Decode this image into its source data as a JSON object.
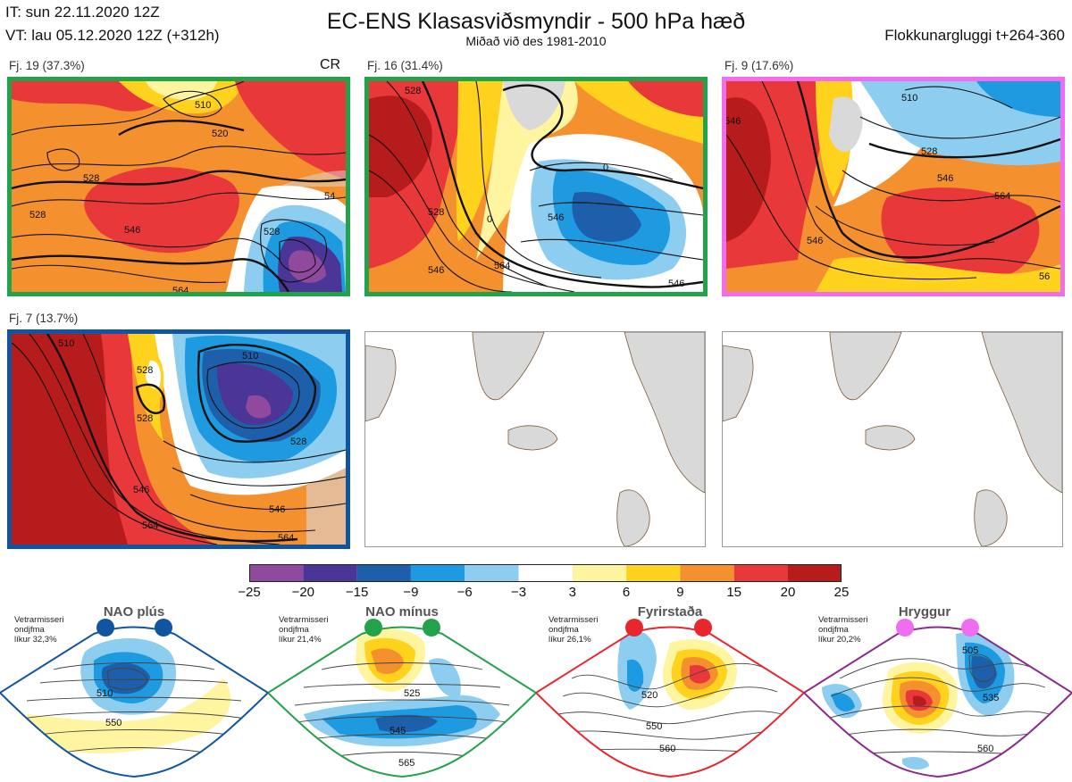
{
  "header": {
    "init_time": "IT: sun 22.11.2020 12Z",
    "valid_time": "VT: lau 05.12.2020 12Z  (+312h)",
    "title": "EC-ENS Klasasviðsmyndir - 500 hPa hæð",
    "subtitle": "Miðað við des 1981-2010",
    "window": "Flokkunargluggi t+264-360"
  },
  "clusters": [
    {
      "label": "Fj. 19 (37.3%)",
      "tag": "CR",
      "frame_color": "#22a24a",
      "contours": [
        "510",
        "520",
        "528",
        "528",
        "546",
        "564",
        "528",
        "54"
      ]
    },
    {
      "label": "Fj. 16 (31.4%)",
      "frame_color": "#22a24a",
      "contours": [
        "528",
        "528",
        "546",
        "546",
        "564",
        "546",
        "0",
        "0"
      ]
    },
    {
      "label": "Fj. 9 (17.6%)",
      "frame_color": "#f06cf0",
      "contours": [
        "510",
        "528",
        "546",
        "564",
        "546",
        "546",
        "56"
      ]
    },
    {
      "label": "Fj. 7 (13.7%)",
      "frame_color": "#1155a0",
      "contours": [
        "510",
        "528",
        "528",
        "546",
        "564",
        "510",
        "546",
        "564",
        "528"
      ]
    }
  ],
  "colorbar": {
    "colors": [
      "#8f4a9e",
      "#4b3596",
      "#1e5fab",
      "#1e9be0",
      "#8ccdf0",
      "#ffffff",
      "#fff4a0",
      "#ffd21e",
      "#f4902e",
      "#e8383a",
      "#b71c1c"
    ],
    "ticks": [
      "−25",
      "−20",
      "−15",
      "−9",
      "−6",
      "−3",
      "3",
      "6",
      "9",
      "15",
      "20",
      "25"
    ]
  },
  "regimes": [
    {
      "title": "NAO plús",
      "dot_color": "#1155a0",
      "frame_color": "#1155a0",
      "season": "Vetrarmisseri",
      "word": "ondjfma",
      "prob": "líkur 32,3%",
      "contours": [
        "510",
        "550"
      ]
    },
    {
      "title": "NAO mínus",
      "dot_color": "#22a24a",
      "frame_color": "#22a24a",
      "season": "Vetrarmisseri",
      "word": "ondjfma",
      "prob": "líkur 21,4%",
      "contours": [
        "525",
        "545",
        "565"
      ]
    },
    {
      "title": "Fyrirstaða",
      "dot_color": "#e8262e",
      "frame_color": "#e8262e",
      "season": "Vetrarmisseri",
      "word": "ondjfma",
      "prob": "líkur 26,1%",
      "contours": [
        "520",
        "550",
        "560"
      ]
    },
    {
      "title": "Hryggur",
      "dot_color": "#f06cf0",
      "frame_color": "#8b2a8e",
      "season": "Vetrarmisseri",
      "word": "ondjfma",
      "prob": "líkur 20,2%",
      "contours": [
        "505",
        "535",
        "560"
      ]
    }
  ]
}
